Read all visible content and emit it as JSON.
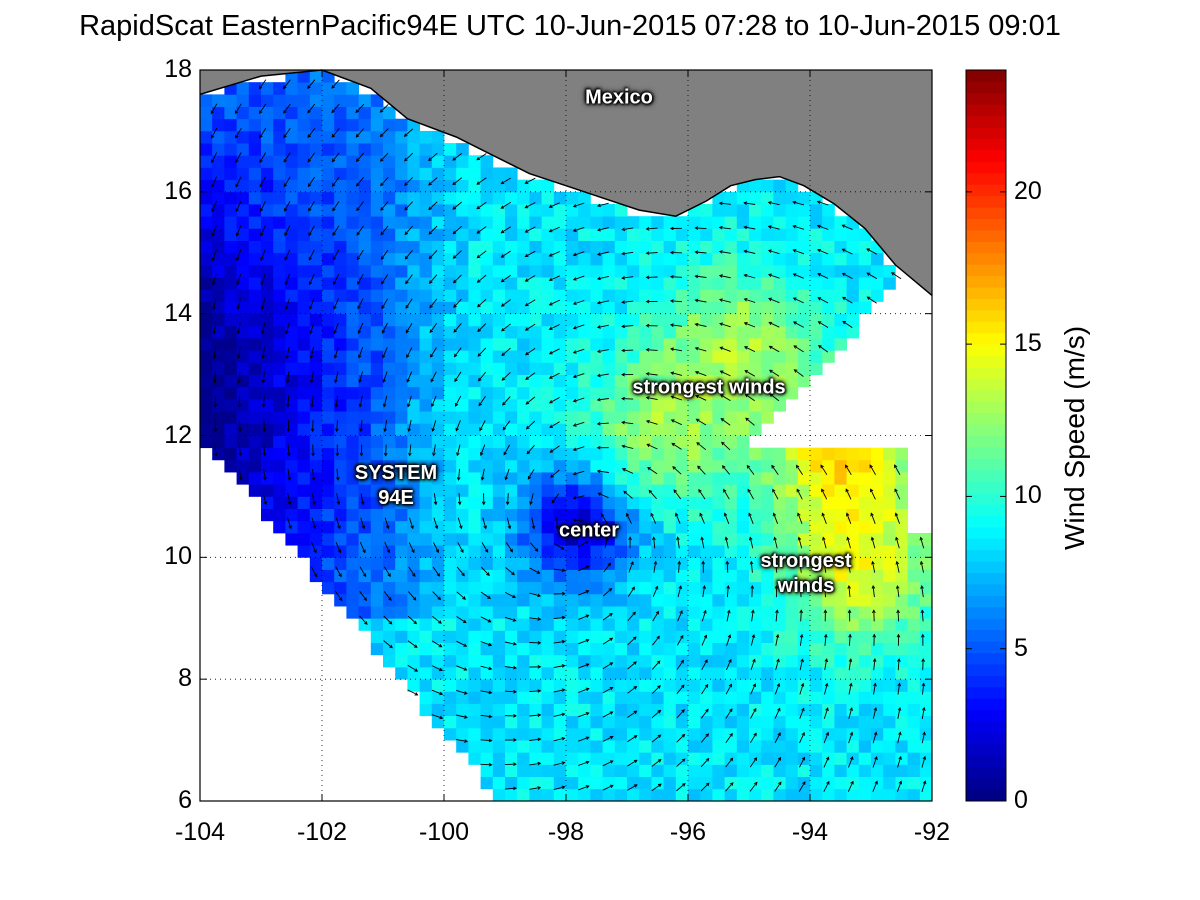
{
  "title": "RapidScat EasternPacific94E UTC 10-Jun-2015 07:28 to 10-Jun-2015 09:01",
  "colorbar": {
    "label": "Wind Speed (m/s)",
    "ticks": [
      "0",
      "5",
      "10",
      "15",
      "20"
    ],
    "range": [
      0,
      24
    ],
    "colormap": "jet"
  },
  "map_labels": {
    "land": "Mexico",
    "system": "SYSTEM\n94E",
    "center": "center",
    "winds_north": "strongest winds",
    "winds_east": "strongest\nwinds"
  },
  "colors": {
    "land": "#808080",
    "no_data": "#ffffff",
    "coastline": "#000000",
    "vectors": "#000000"
  },
  "chart_data": {
    "type": "heatmap",
    "title": "RapidScat EasternPacific94E UTC 10-Jun-2015 07:28 to 10-Jun-2015 09:01",
    "xlim": [
      -104,
      -92
    ],
    "ylim": [
      6,
      18
    ],
    "x_ticks": [
      "-104",
      "-102",
      "-100",
      "-98",
      "-96",
      "-94",
      "-92"
    ],
    "y_ticks": [
      "6",
      "8",
      "10",
      "12",
      "14",
      "16",
      "18"
    ],
    "grid": true,
    "value_label": "Wind Speed (m/s)",
    "value_range": [
      0,
      24
    ],
    "circulation_center": [
      -97.8,
      10.5
    ],
    "peak_winds": [
      {
        "lon": -96.5,
        "lat": 12.0,
        "speed": 14
      },
      {
        "lon": -93.2,
        "lat": 9.8,
        "speed": 16
      },
      {
        "lon": -93.5,
        "lat": 11.7,
        "speed": 17
      },
      {
        "lon": -95.2,
        "lat": 13.6,
        "speed": 14
      }
    ],
    "calm_regions": [
      {
        "lon": -102.5,
        "lat": 13.5,
        "speed": 2.5
      },
      {
        "lon": -97.6,
        "lat": 10.5,
        "speed": 1.5
      }
    ],
    "coastline": [
      [
        -104,
        17.6
      ],
      [
        -103,
        17.9
      ],
      [
        -102,
        18.0
      ],
      [
        -101.2,
        17.7
      ],
      [
        -100.6,
        17.2
      ],
      [
        -99.8,
        16.9
      ],
      [
        -99.2,
        16.6
      ],
      [
        -98.6,
        16.3
      ],
      [
        -98.0,
        16.1
      ],
      [
        -97.4,
        15.9
      ],
      [
        -96.8,
        15.7
      ],
      [
        -96.2,
        15.6
      ],
      [
        -95.7,
        15.85
      ],
      [
        -95.3,
        16.1
      ],
      [
        -94.9,
        16.2
      ],
      [
        -94.5,
        16.25
      ],
      [
        -94.1,
        16.1
      ],
      [
        -93.6,
        15.8
      ],
      [
        -93.1,
        15.4
      ],
      [
        -92.6,
        14.8
      ],
      [
        -92,
        14.3
      ]
    ]
  }
}
